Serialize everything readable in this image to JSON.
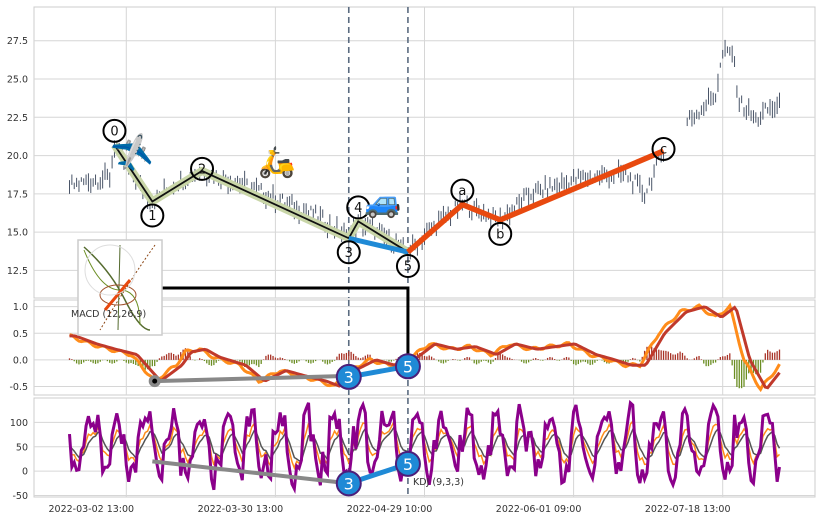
{
  "chart_data": {
    "type": "line",
    "title": "",
    "panels": [
      {
        "name": "price",
        "kind": "candlestick-ticks",
        "ylim": [
          10.7,
          29.7
        ],
        "yticks": [
          12.5,
          15.0,
          17.5,
          20.0,
          22.5,
          25.0,
          27.5
        ],
        "ytick_labels": [
          "12.5",
          "15.0",
          "17.5",
          "20.0",
          "22.5",
          "25.0",
          "27.5"
        ],
        "price_anchors": [
          [
            15,
            18.0
          ],
          [
            25,
            18.4
          ],
          [
            32,
            18.6
          ],
          [
            34,
            20.7
          ],
          [
            42,
            18.5
          ],
          [
            50,
            17.0
          ],
          [
            60,
            18.3
          ],
          [
            71,
            19.0
          ],
          [
            90,
            18.0
          ],
          [
            105,
            17.0
          ],
          [
            120,
            16.0
          ],
          [
            133,
            14.6
          ],
          [
            137,
            15.7
          ],
          [
            158,
            13.7
          ],
          [
            170,
            15.5
          ],
          [
            181,
            16.8
          ],
          [
            197,
            15.8
          ],
          [
            210,
            17.5
          ],
          [
            230,
            18.5
          ],
          [
            250,
            18.8
          ],
          [
            258,
            17.5
          ],
          [
            266,
            20.3
          ],
          [
            270,
            21.5
          ],
          [
            278,
            22.5
          ],
          [
            288,
            24.0
          ],
          [
            291,
            26.6
          ],
          [
            295,
            26.8
          ],
          [
            298,
            23.5
          ],
          [
            305,
            22.3
          ],
          [
            310,
            23.0
          ],
          [
            315,
            23.2
          ]
        ],
        "impulse_wave": [
          {
            "label": "0",
            "x": 34,
            "y": 20.7,
            "pos": "above"
          },
          {
            "label": "1",
            "x": 50,
            "y": 17.0,
            "pos": "below"
          },
          {
            "label": "2",
            "x": 71,
            "y": 19.0,
            "pos": "on"
          },
          {
            "label": "3",
            "x": 133,
            "y": 14.6,
            "pos": "below"
          },
          {
            "label": "4",
            "x": 137,
            "y": 15.7,
            "pos": "above"
          },
          {
            "label": "5",
            "x": 158,
            "y": 13.7,
            "pos": "below"
          }
        ],
        "corrective_wave": [
          {
            "label": "a",
            "x": 181,
            "y": 16.8,
            "pos": "above"
          },
          {
            "label": "b",
            "x": 197,
            "y": 15.8,
            "pos": "below"
          },
          {
            "label": "c",
            "x": 266,
            "y": 20.3,
            "pos": "on"
          }
        ],
        "colors": {
          "wave_line": "#111111",
          "wave_highlight": "#c9d6a8",
          "wave_3_5": "#1f8ad6",
          "corrective": "#e8490f",
          "ticks": "#4a5568"
        }
      },
      {
        "name": "macd",
        "label": "MACD (12,26,9)",
        "ylim": [
          -0.66,
          1.125
        ],
        "yticks": [
          -0.5,
          0.0,
          0.5,
          1.0
        ],
        "ytick_labels": [
          "-0.5",
          "0.0",
          "0.5",
          "1.0"
        ],
        "macd_anchors": [
          [
            15,
            0.45
          ],
          [
            24,
            0.3
          ],
          [
            32,
            0.2
          ],
          [
            41,
            0.1
          ],
          [
            51,
            -0.4
          ],
          [
            60,
            -0.1
          ],
          [
            64,
            0.15
          ],
          [
            70,
            0.2
          ],
          [
            76,
            0.05
          ],
          [
            87,
            -0.1
          ],
          [
            95,
            -0.4
          ],
          [
            104,
            -0.2
          ],
          [
            112,
            -0.3
          ],
          [
            121,
            -0.4
          ],
          [
            127,
            -0.5
          ],
          [
            133,
            -0.2
          ],
          [
            142,
            0.0
          ],
          [
            150,
            -0.1
          ],
          [
            158,
            0.0
          ],
          [
            167,
            0.3
          ],
          [
            176,
            0.2
          ],
          [
            184,
            0.25
          ],
          [
            193,
            0.1
          ],
          [
            201,
            0.3
          ],
          [
            210,
            0.2
          ],
          [
            218,
            0.25
          ],
          [
            226,
            0.3
          ],
          [
            235,
            0.1
          ],
          [
            243,
            0.0
          ],
          [
            250,
            -0.1
          ],
          [
            256,
            -0.1
          ],
          [
            264,
            0.5
          ],
          [
            273,
            0.9
          ],
          [
            281,
            1.0
          ],
          [
            288,
            0.8
          ],
          [
            294,
            1.0
          ],
          [
            300,
            0.0
          ],
          [
            307,
            -0.55
          ],
          [
            315,
            -0.1
          ]
        ],
        "divergence_grey": [
          [
            51,
            -0.4
          ],
          [
            133,
            -0.3
          ]
        ],
        "divergence_blue": [
          {
            "label": "3",
            "x": 133,
            "y": -0.32
          },
          {
            "label": "5",
            "x": 158,
            "y": -0.12
          }
        ],
        "colors": {
          "macd": "#ff8c1a",
          "signal": "#c0392b",
          "hist_pos": "#a83226",
          "hist_neg": "#6b8e23",
          "marker_fill": "#1f8ad6",
          "marker_border": "#4b1f7a"
        }
      },
      {
        "name": "kdj",
        "label": "KDJ (9,3,3)",
        "ylim": [
          -53,
          150
        ],
        "yticks": [
          -50,
          0,
          50,
          100
        ],
        "ytick_labels": [
          "-50",
          "0",
          "50",
          "100"
        ],
        "divergence_grey": [
          [
            50,
            20
          ],
          [
            133,
            -25
          ]
        ],
        "divergence_blue": [
          {
            "label": "3",
            "x": 133,
            "y": -25
          },
          {
            "label": "5",
            "x": 158,
            "y": 15
          }
        ],
        "colors": {
          "k": "#ff8c1a",
          "d": "#555555",
          "j": "#8b008b"
        }
      }
    ],
    "x_range": [
      0,
      330
    ],
    "vlines": [
      133,
      158
    ],
    "xticks": [
      39,
      102,
      165,
      228,
      291
    ],
    "xtick_labels": [
      "2022-03-02 13:00",
      "2022-03-30 13:00",
      "2022-04-29 10:00",
      "2022-06-01 09:00",
      "2022-07-18 13:00"
    ],
    "grid": true,
    "icons": [
      "airplane-icon",
      "scooter-icon",
      "car-icon",
      "inset-thumbnail"
    ]
  }
}
